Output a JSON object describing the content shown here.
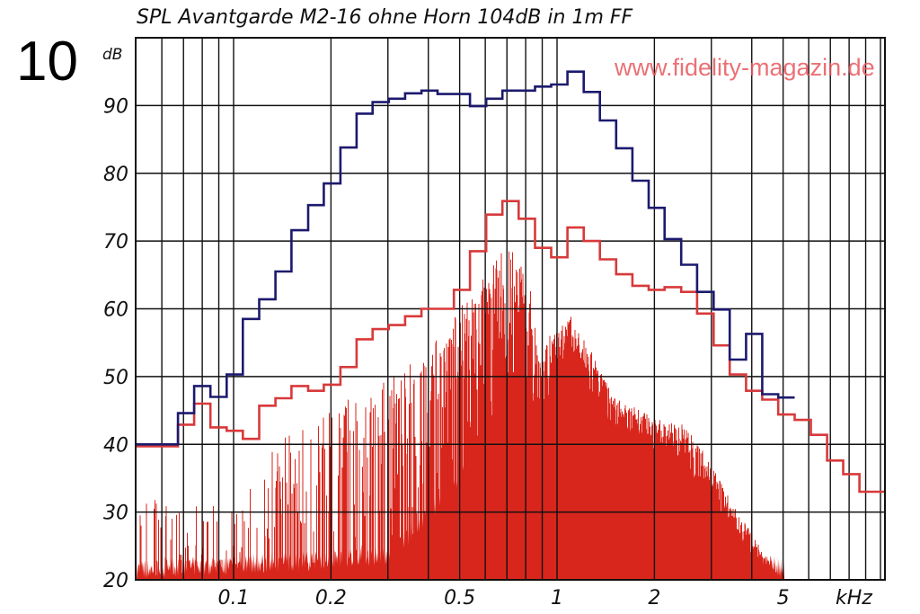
{
  "figure_number": "10",
  "watermark": "www.fidelity-magazin.de",
  "chart_data": {
    "type": "line",
    "title": "SPL Avantgarde M2-16 ohne Horn 104dB in 1m FF",
    "ylabel": "dB",
    "xlabel": "kHz",
    "x_scale": "log",
    "xlim": [
      0.05,
      10.3
    ],
    "ylim": [
      20,
      100
    ],
    "grid": true,
    "x_ticks": [
      {
        "value": 0.1,
        "label": "0.1"
      },
      {
        "value": 0.2,
        "label": "0.2"
      },
      {
        "value": 0.5,
        "label": "0.5"
      },
      {
        "value": 1,
        "label": "1"
      },
      {
        "value": 2,
        "label": "2"
      },
      {
        "value": 5,
        "label": "5"
      }
    ],
    "y_ticks": [
      20,
      30,
      40,
      50,
      60,
      70,
      80,
      90
    ],
    "colors": {
      "blue_steps": "#1c1a6e",
      "red_steps": "#d8393a",
      "spectrum": "#d9261c",
      "grid": "#111111"
    },
    "step_bin_starts_khz": [
      0.05,
      0.0673,
      0.0755,
      0.0848,
      0.0952,
      0.1068,
      0.12,
      0.1347,
      0.151,
      0.17,
      0.19,
      0.214,
      0.24,
      0.269,
      0.302,
      0.339,
      0.381,
      0.427,
      0.48,
      0.538,
      0.604,
      0.678,
      0.761,
      0.855,
      0.959,
      1.077,
      1.209,
      1.357,
      1.523,
      1.71,
      1.92,
      2.15,
      2.42,
      2.71,
      3.05,
      3.42,
      3.84,
      4.31,
      4.83,
      5.43,
      6.09,
      6.84,
      7.67,
      8.61
    ],
    "series": [
      {
        "style": "step",
        "color": "#1c1a6e",
        "values": [
          40,
          44.6,
          48.6,
          47,
          50.3,
          58.5,
          61.4,
          65.5,
          71.6,
          75.3,
          78.5,
          83.8,
          88.8,
          90.5,
          91,
          91.8,
          92.2,
          91.7,
          91.7,
          89.9,
          91,
          92.2,
          92.2,
          92.8,
          93.1,
          95,
          92,
          87.8,
          83.7,
          78.9,
          74.9,
          70.3,
          66.5,
          62.5,
          59.9,
          52.5,
          56.3,
          47.4,
          46.9
        ]
      },
      {
        "style": "step",
        "color": "#d8393a",
        "values": [
          39.7,
          42.9,
          46,
          42.5,
          42,
          40.8,
          45.7,
          46.8,
          48.6,
          47.9,
          48.8,
          51.4,
          55.5,
          57,
          57.6,
          58.9,
          60,
          60,
          62.8,
          68.5,
          73.9,
          75.9,
          73.3,
          69,
          67.6,
          72,
          70,
          67.3,
          65.1,
          63.4,
          62.8,
          63.2,
          62.5,
          59.3,
          54.6,
          50.3,
          47.9,
          46.6,
          44.4,
          43.6,
          41.4,
          37.6,
          35.6,
          33
        ]
      },
      {
        "style": "spectrum",
        "color": "#d9261c",
        "peak_envelope": [
          [
            0.05,
            32
          ],
          [
            0.1,
            31
          ],
          [
            0.13,
            40
          ],
          [
            0.2,
            46
          ],
          [
            0.3,
            50
          ],
          [
            0.4,
            54
          ],
          [
            0.5,
            60
          ],
          [
            0.6,
            66
          ],
          [
            0.7,
            70
          ],
          [
            0.8,
            66
          ],
          [
            0.9,
            55
          ],
          [
            1.0,
            57
          ],
          [
            1.1,
            59
          ],
          [
            1.3,
            53
          ],
          [
            1.5,
            47
          ],
          [
            2.0,
            44
          ],
          [
            2.5,
            43
          ],
          [
            3.0,
            37
          ],
          [
            3.5,
            31
          ],
          [
            4.0,
            27
          ],
          [
            4.6,
            22
          ],
          [
            5.0,
            20
          ]
        ],
        "floor_envelope": [
          [
            0.05,
            20
          ],
          [
            0.3,
            22
          ],
          [
            0.4,
            28
          ],
          [
            0.5,
            33
          ],
          [
            0.7,
            45
          ],
          [
            0.9,
            40
          ],
          [
            1.1,
            50
          ],
          [
            1.5,
            41
          ],
          [
            2.0,
            38
          ],
          [
            2.5,
            35
          ],
          [
            3.0,
            29
          ],
          [
            4.0,
            22
          ],
          [
            5.0,
            20
          ]
        ]
      }
    ]
  }
}
